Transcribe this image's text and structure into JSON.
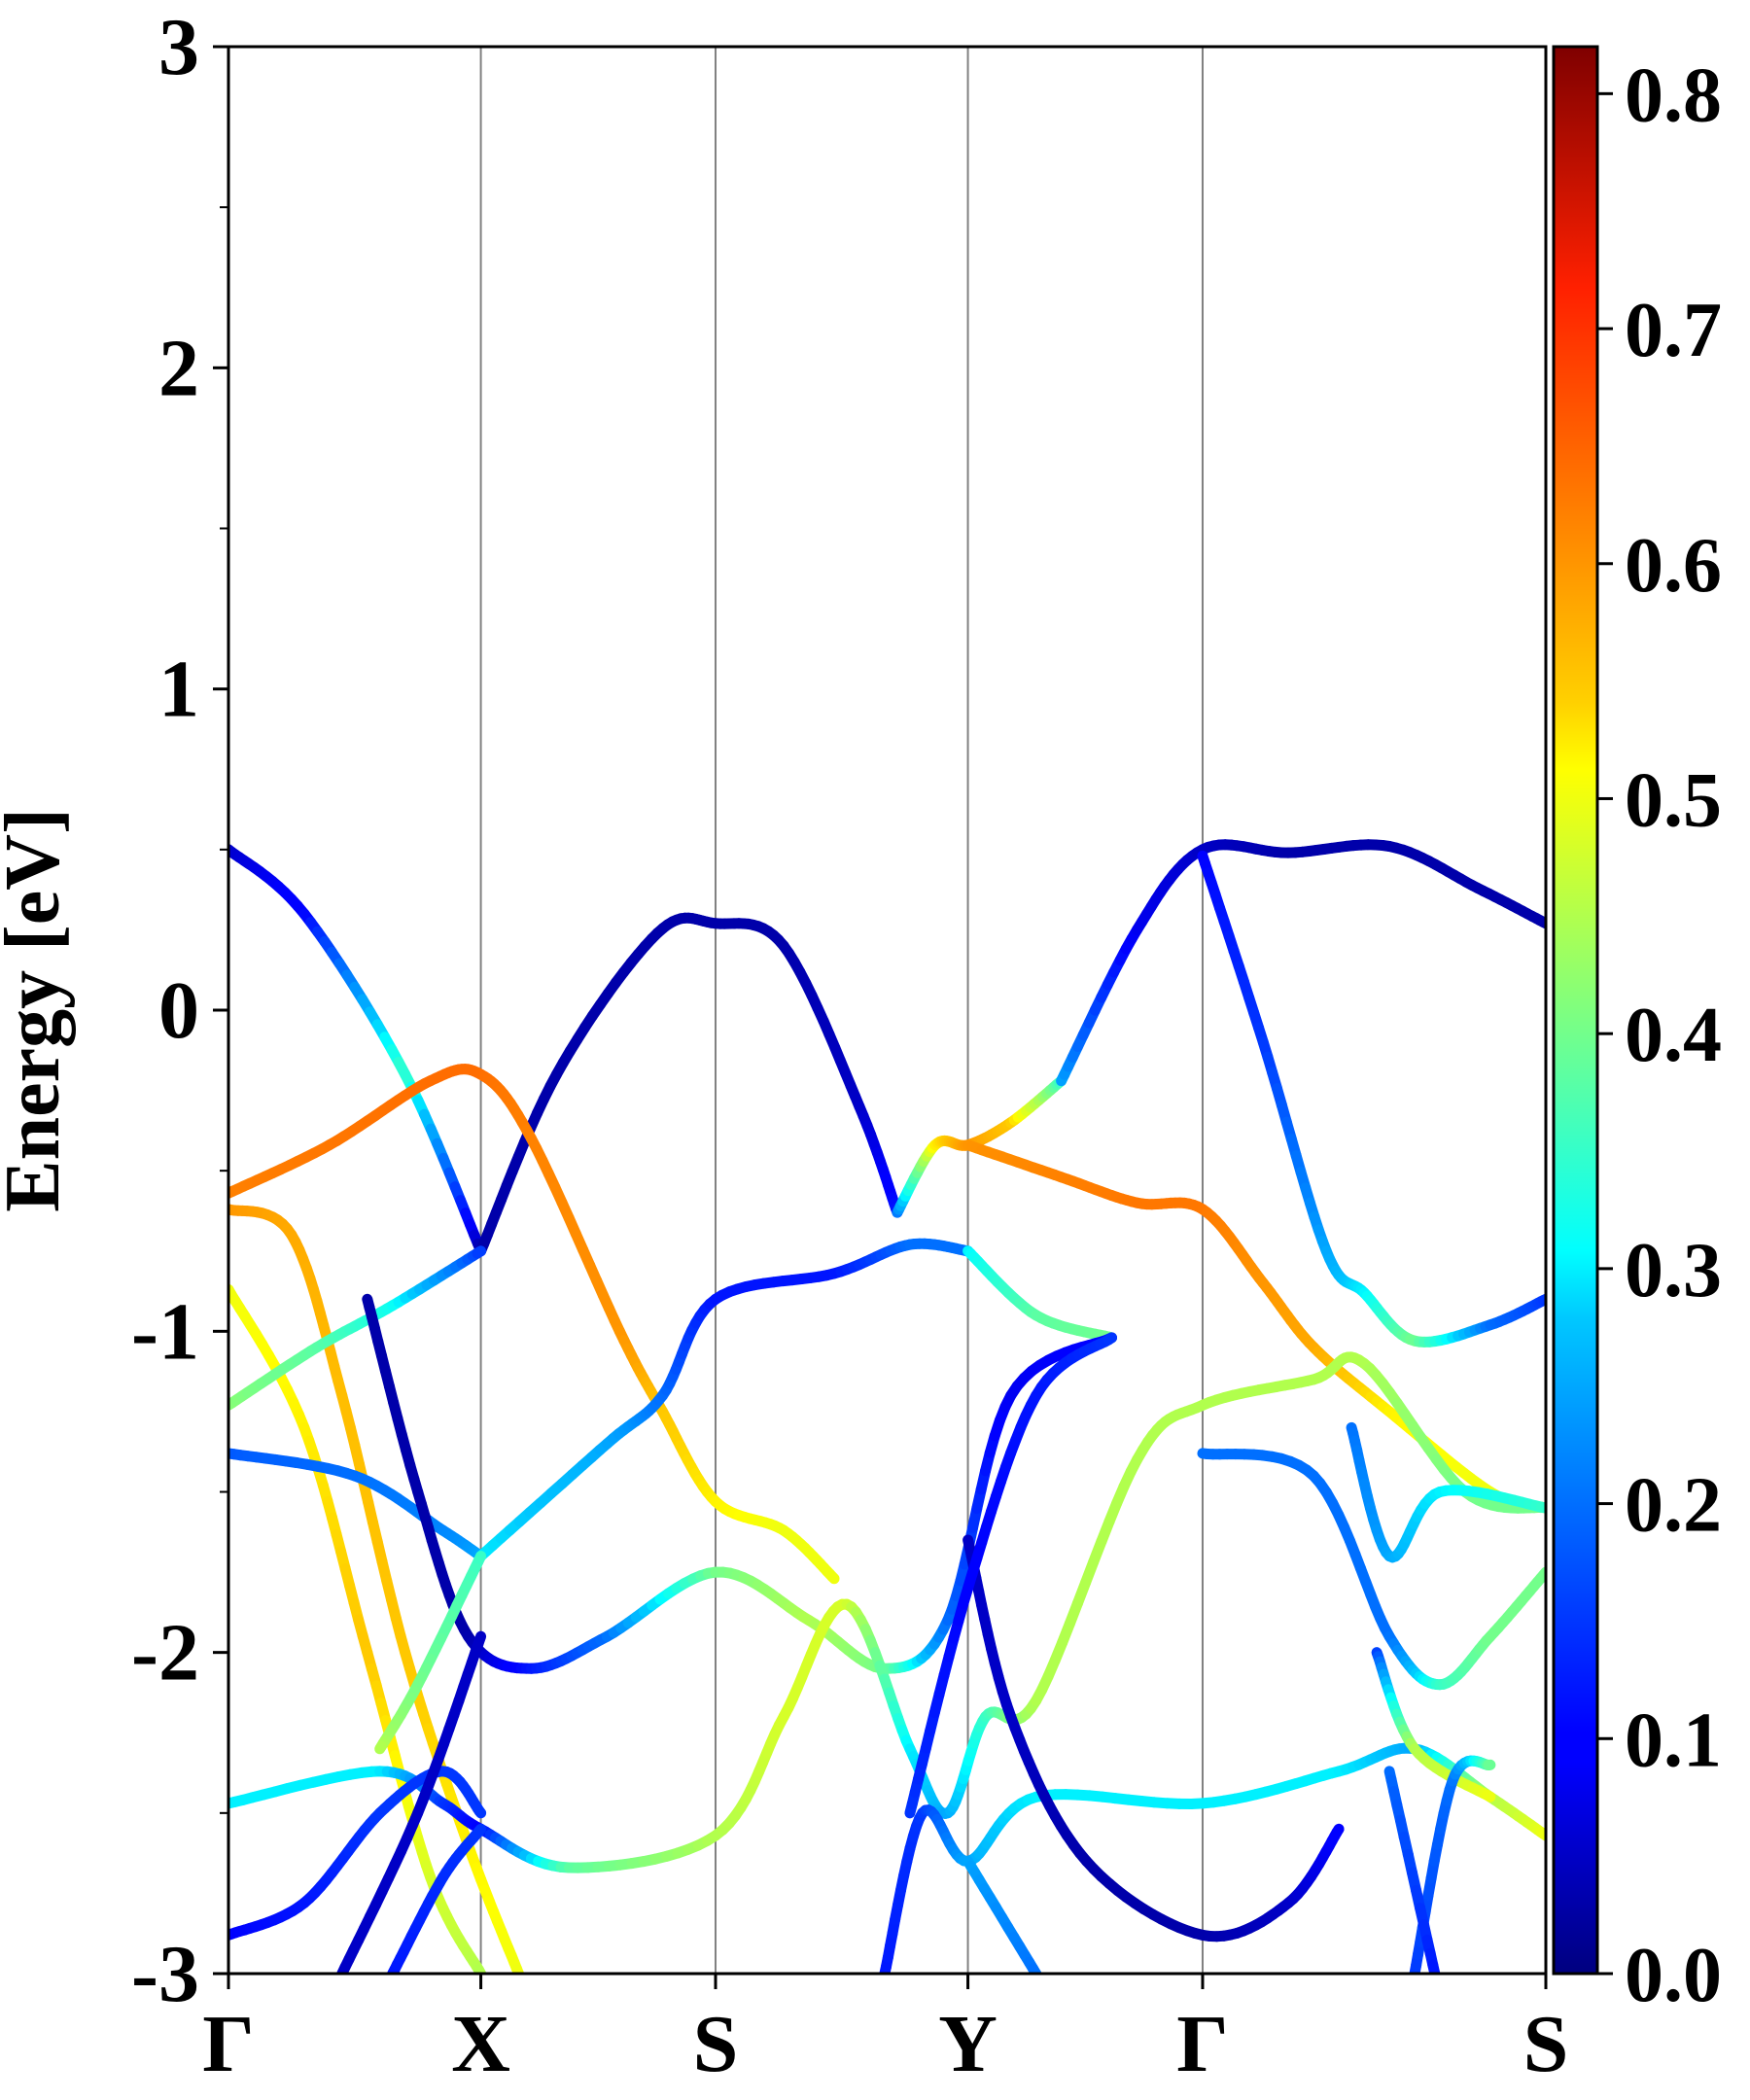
{
  "chart_data": {
    "type": "line",
    "title": "",
    "xlabel": "",
    "ylabel": "Energy [eV]",
    "ylim": [
      -3,
      3
    ],
    "yticks": [
      "3",
      "2",
      "1",
      "0",
      "-1",
      "-2",
      "-3"
    ],
    "k_points": [
      "Γ",
      "X",
      "S",
      "Y",
      "Γ",
      "S"
    ],
    "k_positions": [
      0,
      1,
      1.93,
      2.93,
      3.86,
      5.22
    ],
    "grid": "vertical lines at high-symmetry k-points",
    "colorbar": {
      "range": [
        0.0,
        0.82
      ],
      "ticks": [
        "0.8",
        "0.7",
        "0.6",
        "0.5",
        "0.4",
        "0.3",
        "0.2",
        "0.1",
        "0.0"
      ],
      "colormap": "jet"
    },
    "series": [
      {
        "points": [
          [
            0,
            0.5,
            0.05
          ],
          [
            0.3,
            0.3,
            0.1
          ],
          [
            0.7,
            -0.2,
            0.35
          ],
          [
            1,
            -0.75,
            0.03
          ]
        ]
      },
      {
        "points": [
          [
            1,
            -0.75,
            0.03
          ],
          [
            1.3,
            -0.2,
            0.03
          ],
          [
            1.7,
            0.24,
            0.03
          ],
          [
            1.93,
            0.27,
            0.03
          ],
          [
            2.2,
            0.2,
            0.03
          ],
          [
            2.5,
            -0.3,
            0.05
          ],
          [
            2.65,
            -0.63,
            0.12
          ]
        ]
      },
      {
        "points": [
          [
            2.65,
            -0.63,
            0.2
          ],
          [
            2.8,
            -0.42,
            0.52
          ],
          [
            2.93,
            -0.42,
            0.6
          ],
          [
            3.1,
            -0.35,
            0.55
          ],
          [
            3.3,
            -0.22,
            0.35
          ]
        ]
      },
      {
        "points": [
          [
            3.3,
            -0.22,
            0.25
          ],
          [
            3.6,
            0.25,
            0.08
          ],
          [
            3.86,
            0.5,
            0.05
          ],
          [
            4.2,
            0.49,
            0.03
          ],
          [
            4.6,
            0.51,
            0.03
          ],
          [
            4.95,
            0.38,
            0.03
          ],
          [
            5.22,
            0.27,
            0.03
          ]
        ]
      },
      {
        "points": [
          [
            3.86,
            0.48,
            0.1
          ],
          [
            4.1,
            -0.1,
            0.15
          ],
          [
            4.35,
            -0.75,
            0.25
          ],
          [
            4.5,
            -0.88,
            0.3
          ],
          [
            4.7,
            -1.03,
            0.4
          ],
          [
            5,
            -0.98,
            0.2
          ],
          [
            5.22,
            -0.9,
            0.15
          ]
        ]
      },
      {
        "points": [
          [
            0,
            -0.57,
            0.62
          ],
          [
            0.4,
            -0.42,
            0.63
          ],
          [
            0.8,
            -0.22,
            0.64
          ],
          [
            1,
            -0.2,
            0.64
          ],
          [
            1.2,
            -0.4,
            0.62
          ],
          [
            1.55,
            -1.0,
            0.6
          ],
          [
            1.72,
            -1.25,
            0.55
          ],
          [
            1.93,
            -1.53,
            0.52
          ],
          [
            2.2,
            -1.62,
            0.5
          ],
          [
            2.4,
            -1.77,
            0.5
          ]
        ]
      },
      {
        "points": [
          [
            2.93,
            -0.42,
            0.6
          ],
          [
            3.3,
            -0.52,
            0.62
          ],
          [
            3.6,
            -0.6,
            0.63
          ],
          [
            3.86,
            -0.62,
            0.63
          ],
          [
            4.1,
            -0.85,
            0.6
          ],
          [
            4.3,
            -1.05,
            0.58
          ],
          [
            4.6,
            -1.25,
            0.52
          ],
          [
            5,
            -1.5,
            0.5
          ],
          [
            5.22,
            -1.55,
            0.5
          ]
        ]
      },
      {
        "points": [
          [
            0,
            -0.62,
            0.6
          ],
          [
            0.25,
            -0.7,
            0.58
          ],
          [
            0.45,
            -1.2,
            0.56
          ],
          [
            0.7,
            -2.0,
            0.55
          ],
          [
            0.95,
            -2.6,
            0.52
          ],
          [
            1.15,
            -3.0,
            0.5
          ]
        ]
      },
      {
        "points": [
          [
            0,
            -0.87,
            0.5
          ],
          [
            0.3,
            -1.3,
            0.52
          ],
          [
            0.55,
            -2.0,
            0.55
          ],
          [
            0.8,
            -2.7,
            0.48
          ],
          [
            1.0,
            -3.0,
            0.45
          ]
        ]
      },
      {
        "points": [
          [
            0,
            -1.23,
            0.42
          ],
          [
            0.35,
            -1.05,
            0.38
          ],
          [
            0.65,
            -0.92,
            0.32
          ],
          [
            1,
            -0.75,
            0.15
          ]
        ]
      },
      {
        "points": [
          [
            0,
            -1.38,
            0.18
          ],
          [
            0.5,
            -1.45,
            0.2
          ],
          [
            0.85,
            -1.62,
            0.22
          ],
          [
            1,
            -1.7,
            0.25
          ]
        ]
      },
      {
        "points": [
          [
            1,
            -1.7,
            0.3
          ],
          [
            1.5,
            -1.35,
            0.25
          ],
          [
            1.72,
            -1.2,
            0.2
          ],
          [
            1.93,
            -0.9,
            0.12
          ],
          [
            2.4,
            -0.82,
            0.12
          ],
          [
            2.7,
            -0.73,
            0.2
          ],
          [
            2.93,
            -0.75,
            0.2
          ]
        ]
      },
      {
        "points": [
          [
            2.93,
            -0.75,
            0.3
          ],
          [
            3.2,
            -0.95,
            0.38
          ],
          [
            3.5,
            -1.02,
            0.4
          ]
        ]
      },
      {
        "points": [
          [
            0.55,
            -0.9,
            0.03
          ],
          [
            0.75,
            -1.5,
            0.03
          ],
          [
            0.95,
            -1.95,
            0.03
          ],
          [
            1.2,
            -2.05,
            0.12
          ],
          [
            1.5,
            -1.95,
            0.2
          ],
          [
            1.93,
            -1.75,
            0.4
          ],
          [
            2.3,
            -1.9,
            0.45
          ],
          [
            2.6,
            -2.05,
            0.4
          ],
          [
            2.85,
            -1.9,
            0.2
          ],
          [
            3.1,
            -1.2,
            0.08
          ],
          [
            3.5,
            -1.02,
            0.1
          ]
        ]
      },
      {
        "points": [
          [
            1,
            -1.7,
            0.35
          ],
          [
            0.75,
            -2.1,
            0.4
          ],
          [
            0.6,
            -2.3,
            0.45
          ]
        ]
      },
      {
        "points": [
          [
            0,
            -2.47,
            0.3
          ],
          [
            0.6,
            -2.37,
            0.3
          ],
          [
            0.85,
            -2.47,
            0.15
          ],
          [
            1,
            -2.55,
            0.1
          ],
          [
            1.35,
            -2.67,
            0.38
          ],
          [
            1.93,
            -2.57,
            0.45
          ],
          [
            2.2,
            -2.2,
            0.48
          ],
          [
            2.45,
            -1.85,
            0.48
          ],
          [
            2.7,
            -2.3,
            0.3
          ],
          [
            2.85,
            -2.5,
            0.25
          ],
          [
            3.0,
            -2.2,
            0.35
          ],
          [
            3.2,
            -2.15,
            0.45
          ],
          [
            3.6,
            -1.4,
            0.45
          ],
          [
            3.86,
            -1.23,
            0.45
          ],
          [
            4.3,
            -1.15,
            0.45
          ],
          [
            4.5,
            -1.1,
            0.45
          ],
          [
            4.9,
            -1.5,
            0.4
          ],
          [
            5.22,
            -1.55,
            0.4
          ]
        ]
      },
      {
        "points": [
          [
            0,
            -2.88,
            0.1
          ],
          [
            0.3,
            -2.78,
            0.12
          ],
          [
            0.6,
            -2.5,
            0.15
          ],
          [
            0.85,
            -2.37,
            0.15
          ],
          [
            1,
            -2.5,
            0.15
          ]
        ]
      },
      {
        "points": [
          [
            0.45,
            -3.0,
            0.05
          ],
          [
            0.75,
            -2.5,
            0.05
          ],
          [
            1,
            -1.95,
            0.05
          ]
        ]
      },
      {
        "points": [
          [
            0.65,
            -3.0,
            0.12
          ],
          [
            0.85,
            -2.7,
            0.14
          ],
          [
            1,
            -2.55,
            0.15
          ]
        ]
      },
      {
        "points": [
          [
            2.6,
            -3.0,
            0.12
          ],
          [
            2.75,
            -2.5,
            0.15
          ],
          [
            2.93,
            -2.65,
            0.25
          ],
          [
            3.2,
            -2.45,
            0.3
          ],
          [
            3.86,
            -2.47,
            0.3
          ],
          [
            4.4,
            -2.37,
            0.3
          ],
          [
            4.7,
            -2.3,
            0.25
          ],
          [
            5,
            -2.45,
            0.45
          ],
          [
            5.22,
            -2.57,
            0.5
          ]
        ]
      },
      {
        "points": [
          [
            2.93,
            -2.65,
            0.25
          ],
          [
            3.2,
            -3.0,
            0.2
          ]
        ]
      },
      {
        "points": [
          [
            2.93,
            -1.65,
            0.05
          ],
          [
            3.1,
            -2.2,
            0.05
          ],
          [
            3.4,
            -2.65,
            0.03
          ],
          [
            3.86,
            -2.88,
            0.03
          ],
          [
            4.2,
            -2.78,
            0.05
          ],
          [
            4.4,
            -2.55,
            0.1
          ]
        ]
      },
      {
        "points": [
          [
            2.7,
            -2.5,
            0.15
          ],
          [
            2.93,
            -1.8,
            0.1
          ],
          [
            3.2,
            -1.2,
            0.12
          ],
          [
            3.5,
            -1.02,
            0.15
          ]
        ]
      },
      {
        "points": [
          [
            3.86,
            -1.38,
            0.2
          ],
          [
            4.3,
            -1.45,
            0.2
          ],
          [
            4.6,
            -1.95,
            0.2
          ],
          [
            4.8,
            -2.1,
            0.35
          ],
          [
            5.0,
            -1.95,
            0.4
          ],
          [
            5.22,
            -1.75,
            0.4
          ]
        ]
      },
      {
        "points": [
          [
            4.55,
            -2.0,
            0.15
          ],
          [
            4.7,
            -2.3,
            0.45
          ],
          [
            5,
            -2.45,
            0.5
          ]
        ]
      },
      {
        "points": [
          [
            4.7,
            -3.0,
            0.15
          ],
          [
            4.85,
            -2.4,
            0.2
          ],
          [
            5.0,
            -2.35,
            0.4
          ]
        ]
      },
      {
        "points": [
          [
            4.6,
            -2.37,
            0.2
          ],
          [
            4.78,
            -3.0,
            0.12
          ]
        ]
      },
      {
        "points": [
          [
            4.45,
            -1.3,
            0.2
          ],
          [
            4.6,
            -1.7,
            0.25
          ],
          [
            4.8,
            -1.5,
            0.3
          ],
          [
            5.22,
            -1.55,
            0.35
          ]
        ]
      }
    ]
  }
}
